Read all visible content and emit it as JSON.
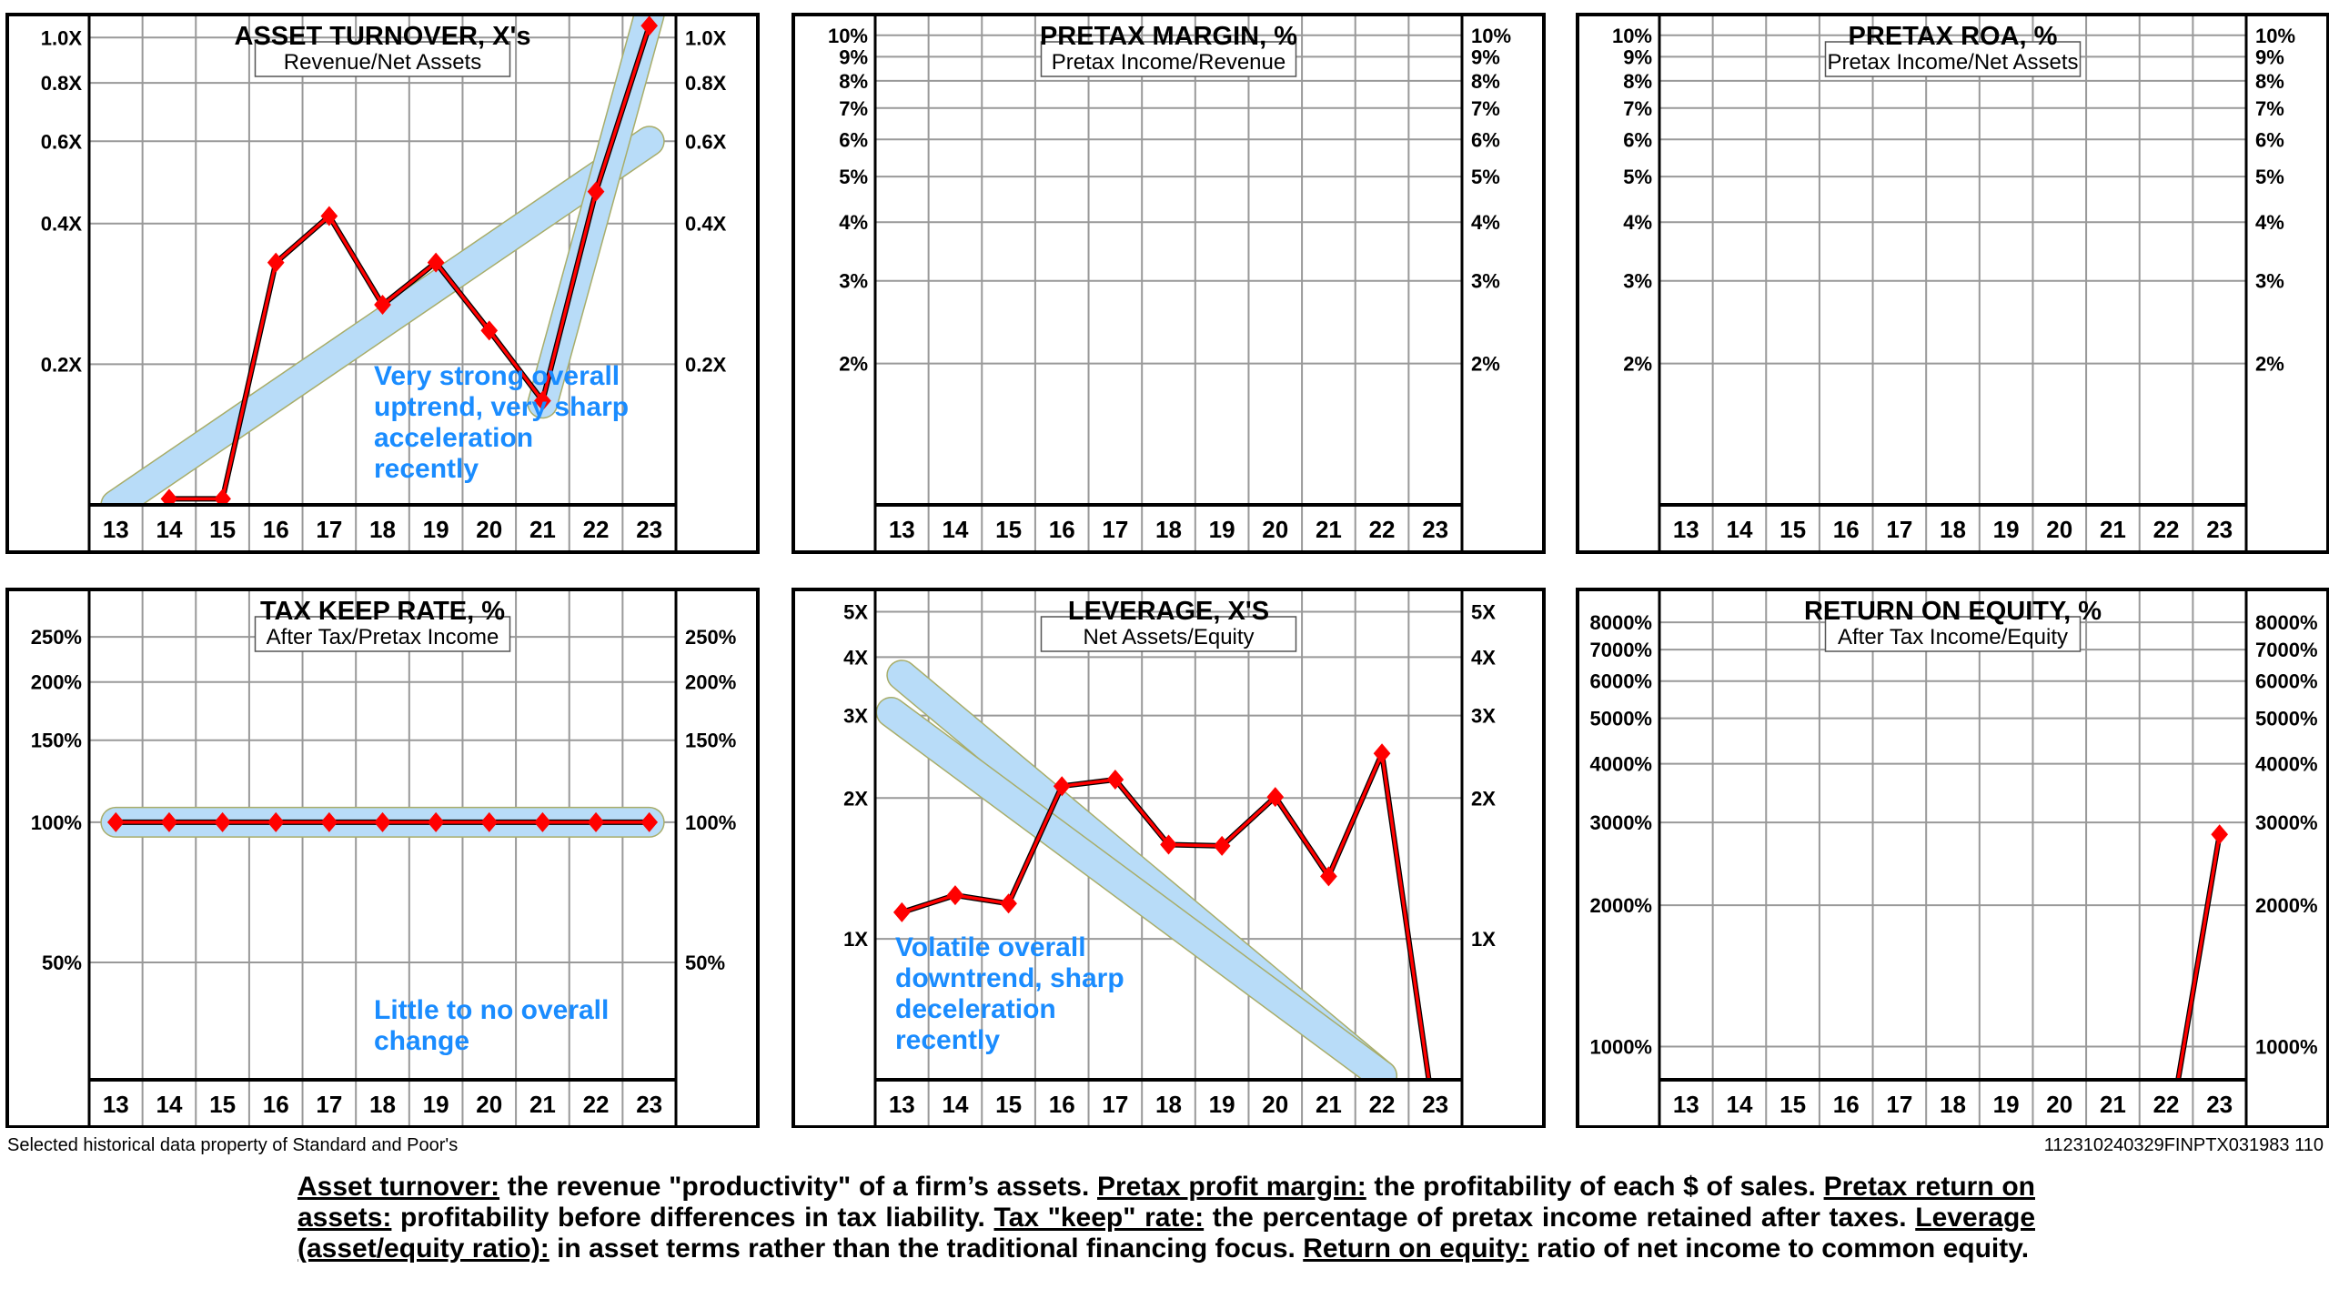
{
  "chart_data": [
    {
      "type": "line",
      "scale": "log",
      "title": "ASSET TURNOVER, X's",
      "subtitle": "Revenue/Net Assets",
      "categories": [
        "13",
        "14",
        "15",
        "16",
        "17",
        "18",
        "19",
        "20",
        "21",
        "22",
        "23"
      ],
      "values": [
        null,
        0.103,
        0.103,
        0.33,
        0.415,
        0.268,
        0.33,
        0.236,
        0.167,
        0.468,
        1.06
      ],
      "ylim": [
        0.1,
        1.12
      ],
      "y_ticks": [
        {
          "value": 1.0,
          "label": "1.0X"
        },
        {
          "value": 0.8,
          "label": "0.8X"
        },
        {
          "value": 0.6,
          "label": "0.6X"
        },
        {
          "value": 0.4,
          "label": "0.4X"
        },
        {
          "value": 0.2,
          "label": "0.2X"
        }
      ],
      "trendlines": [
        {
          "x": [
            13,
            23
          ],
          "y": [
            0.1,
            0.6
          ]
        },
        {
          "x": [
            21,
            23
          ],
          "y": [
            0.165,
            1.12
          ]
        }
      ],
      "annotation": [
        "Very strong overall",
        "uptrend, very sharp",
        "acceleration",
        "recently"
      ]
    },
    {
      "type": "line",
      "scale": "log",
      "title": "PRETAX MARGIN, %",
      "subtitle": "Pretax Income/Revenue",
      "categories": [
        "13",
        "14",
        "15",
        "16",
        "17",
        "18",
        "19",
        "20",
        "21",
        "22",
        "23"
      ],
      "values": [
        null,
        null,
        null,
        null,
        null,
        null,
        null,
        null,
        null,
        null,
        null
      ],
      "ylim": [
        1.0,
        11.07
      ],
      "y_ticks": [
        {
          "value": 10,
          "label": "10%"
        },
        {
          "value": 9,
          "label": "9%"
        },
        {
          "value": 8,
          "label": "8%"
        },
        {
          "value": 7,
          "label": "7%"
        },
        {
          "value": 6,
          "label": "6%"
        },
        {
          "value": 5,
          "label": "5%"
        },
        {
          "value": 4,
          "label": "4%"
        },
        {
          "value": 3,
          "label": "3%"
        },
        {
          "value": 2,
          "label": "2%"
        }
      ],
      "trendlines": [],
      "annotation": []
    },
    {
      "type": "line",
      "scale": "log",
      "title": "PRETAX ROA, %",
      "subtitle": "Pretax Income/Net Assets",
      "categories": [
        "13",
        "14",
        "15",
        "16",
        "17",
        "18",
        "19",
        "20",
        "21",
        "22",
        "23"
      ],
      "values": [
        null,
        null,
        null,
        null,
        null,
        null,
        null,
        null,
        null,
        null,
        null
      ],
      "ylim": [
        1.0,
        11.07
      ],
      "y_ticks": [
        {
          "value": 10,
          "label": "10%"
        },
        {
          "value": 9,
          "label": "9%"
        },
        {
          "value": 8,
          "label": "8%"
        },
        {
          "value": 7,
          "label": "7%"
        },
        {
          "value": 6,
          "label": "6%"
        },
        {
          "value": 5,
          "label": "5%"
        },
        {
          "value": 4,
          "label": "4%"
        },
        {
          "value": 3,
          "label": "3%"
        },
        {
          "value": 2,
          "label": "2%"
        }
      ],
      "trendlines": [],
      "annotation": []
    },
    {
      "type": "line",
      "scale": "log",
      "title": "TAX KEEP RATE, %",
      "subtitle": "After Tax/Pretax Income",
      "categories": [
        "13",
        "14",
        "15",
        "16",
        "17",
        "18",
        "19",
        "20",
        "21",
        "22",
        "23"
      ],
      "values": [
        100,
        100,
        100,
        100,
        100,
        100,
        100,
        100,
        100,
        100,
        100
      ],
      "ylim": [
        28,
        316
      ],
      "y_ticks": [
        {
          "value": 250,
          "label": "250%"
        },
        {
          "value": 200,
          "label": "200%"
        },
        {
          "value": 150,
          "label": "150%"
        },
        {
          "value": 100,
          "label": "100%"
        },
        {
          "value": 50,
          "label": "50%"
        }
      ],
      "trendlines": [
        {
          "x": [
            13,
            23
          ],
          "y": [
            100,
            100
          ]
        }
      ],
      "annotation": [
        "Little to no overall",
        "change"
      ]
    },
    {
      "type": "line",
      "scale": "log",
      "title": "LEVERAGE, X'S",
      "subtitle": "Net Assets/Equity",
      "categories": [
        "13",
        "14",
        "15",
        "16",
        "17",
        "18",
        "19",
        "20",
        "21",
        "22",
        "23"
      ],
      "values": [
        1.14,
        1.24,
        1.19,
        2.12,
        2.19,
        1.59,
        1.58,
        2.01,
        1.36,
        2.49,
        0.4
      ],
      "ylim": [
        0.5,
        5.58
      ],
      "y_ticks": [
        {
          "value": 5,
          "label": "5X"
        },
        {
          "value": 4,
          "label": "4X"
        },
        {
          "value": 3,
          "label": "3X"
        },
        {
          "value": 2,
          "label": "2X"
        },
        {
          "value": 1,
          "label": "1X"
        }
      ],
      "trendlines": [
        {
          "x": [
            13,
            22
          ],
          "y": [
            3.66,
            0.51
          ]
        },
        {
          "x": [
            12.8,
            22
          ],
          "y": [
            3.05,
            0.51
          ]
        }
      ],
      "annotation": [
        "Volatile overall",
        "downtrend, sharp",
        "deceleration",
        "recently"
      ]
    },
    {
      "type": "line",
      "scale": "log",
      "title": "RETURN ON EQUITY, %",
      "subtitle": "After Tax Income/Equity",
      "categories": [
        "13",
        "14",
        "15",
        "16",
        "17",
        "18",
        "19",
        "20",
        "21",
        "22",
        "23"
      ],
      "values": [
        null,
        null,
        null,
        null,
        null,
        null,
        null,
        null,
        null,
        600,
        2830
      ],
      "ylim": [
        850,
        9400
      ],
      "y_ticks": [
        {
          "value": 8000,
          "label": "8000%"
        },
        {
          "value": 7000,
          "label": "7000%"
        },
        {
          "value": 6000,
          "label": "6000%"
        },
        {
          "value": 5000,
          "label": "5000%"
        },
        {
          "value": 4000,
          "label": "4000%"
        },
        {
          "value": 3000,
          "label": "3000%"
        },
        {
          "value": 2000,
          "label": "2000%"
        },
        {
          "value": 1000,
          "label": "1000%"
        }
      ],
      "trendlines": [],
      "annotation": []
    }
  ],
  "footer": {
    "source": "Selected historical data property of Standard and Poor's",
    "code": "112310240329FINPTX031983 110"
  },
  "glossary": [
    {
      "term": "Asset turnover:",
      "def": " the revenue \"productivity\" of a firm’s assets. "
    },
    {
      "term": "Pretax profit margin:",
      "def": " the profitability of each $ of sales. "
    },
    {
      "term": "Pretax return on assets:",
      "def": " profitability before differences in tax liability. "
    },
    {
      "term": "Tax \"keep\" rate:",
      "def": " the percentage of pretax income retained after taxes. "
    },
    {
      "term": "Leverage (asset/equity ratio):",
      "def": " in asset terms rather than the traditional financing focus. "
    },
    {
      "term": "Return on equity:",
      "def": " ratio of net income to common equity."
    }
  ],
  "colors": {
    "series": "#ff0000",
    "trend": "#b8dcf8",
    "annotation": "#1a8cff",
    "grid": "#999999"
  }
}
